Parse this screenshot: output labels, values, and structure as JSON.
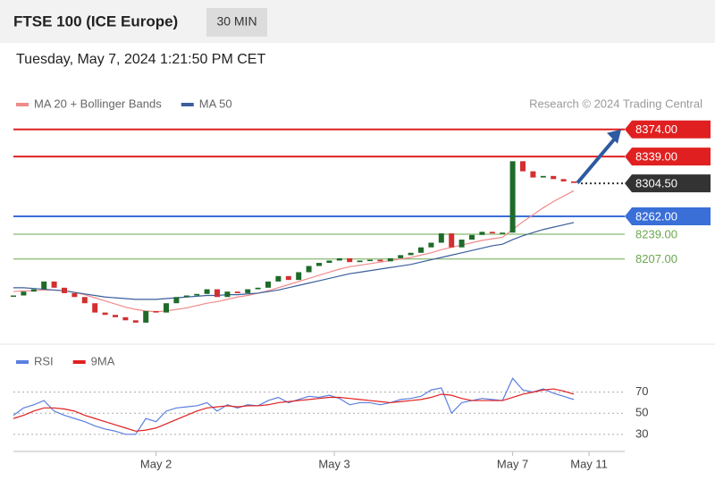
{
  "header": {
    "title": "FTSE 100 (ICE Europe)",
    "interval": "30 MIN",
    "timestamp": "Tuesday, May 7, 2024 1:21:50 PM CET",
    "credit": "Research © 2024 Trading Central"
  },
  "chart_data": [
    {
      "type": "candlestick",
      "values": [
        8160,
        8165,
        8168,
        8178,
        8170,
        8163,
        8158,
        8150,
        8138,
        8135,
        8132,
        8128,
        8125,
        8140,
        8138,
        8150,
        8158,
        8160,
        8162,
        8168,
        8158,
        8165,
        8163,
        8168,
        8170,
        8178,
        8185,
        8180,
        8190,
        8198,
        8202,
        8205,
        8208,
        8203,
        8205,
        8206,
        8204,
        8208,
        8212,
        8215,
        8222,
        8228,
        8240,
        8222,
        8232,
        8238,
        8242,
        8240,
        8241,
        8333,
        8320,
        8312,
        8314,
        8310,
        8307,
        8305
      ],
      "up_color": "#1e6b2a",
      "down_color": "#d32f2f",
      "series": [
        {
          "name": "MA 20 + Bollinger Bands",
          "color": "#f08a8a",
          "values": [
            8165,
            8166,
            8166,
            8167,
            8167,
            8166,
            8164,
            8161,
            8157,
            8153,
            8149,
            8145,
            8142,
            8140,
            8139,
            8140,
            8142,
            8144,
            8147,
            8150,
            8152,
            8155,
            8158,
            8160,
            8163,
            8166,
            8170,
            8174,
            8178,
            8182,
            8186,
            8190,
            8194,
            8197,
            8199,
            8201,
            8203,
            8205,
            8207,
            8209,
            8212,
            8215,
            8219,
            8222,
            8225,
            8228,
            8231,
            8233,
            8235,
            8245,
            8255,
            8264,
            8273,
            8281,
            8288,
            8295
          ]
        },
        {
          "name": "MA 50",
          "color": "#3b5e9c",
          "values": [
            8170,
            8170,
            8169,
            8168,
            8167,
            8166,
            8164,
            8162,
            8160,
            8158,
            8157,
            8156,
            8155,
            8155,
            8155,
            8156,
            8157,
            8158,
            8159,
            8160,
            8160,
            8161,
            8161,
            8162,
            8163,
            8165,
            8167,
            8170,
            8173,
            8176,
            8179,
            8182,
            8185,
            8188,
            8190,
            8192,
            8194,
            8196,
            8198,
            8200,
            8203,
            8206,
            8209,
            8212,
            8215,
            8218,
            8221,
            8224,
            8226,
            8232,
            8237,
            8241,
            8245,
            8248,
            8251,
            8254
          ]
        }
      ],
      "levels": [
        {
          "value": 8374,
          "label": "8374.00",
          "color": "#e02020"
        },
        {
          "value": 8339,
          "label": "8339.00",
          "color": "#e02020"
        },
        {
          "value": 8304.5,
          "label": "8304.50",
          "color": "#333333"
        },
        {
          "value": 8262,
          "label": "8262.00",
          "color": "#3a6fd8"
        },
        {
          "value": 8239,
          "label": "8239.00",
          "color": "#6aa84f"
        },
        {
          "value": 8207,
          "label": "8207.00",
          "color": "#6aa84f"
        }
      ],
      "xlim": [
        0,
        60
      ],
      "ylim": [
        8103,
        8391
      ]
    },
    {
      "type": "line",
      "series": [
        {
          "name": "RSI",
          "color": "#5b7fe0",
          "values": [
            48,
            55,
            58,
            62,
            52,
            48,
            45,
            42,
            38,
            35,
            33,
            30,
            30,
            45,
            42,
            52,
            55,
            56,
            57,
            60,
            52,
            58,
            55,
            58,
            57,
            62,
            65,
            60,
            63,
            66,
            65,
            67,
            64,
            58,
            60,
            60,
            58,
            60,
            63,
            64,
            66,
            72,
            74,
            50,
            60,
            62,
            64,
            63,
            62,
            83,
            72,
            70,
            73,
            69,
            66,
            63
          ]
        },
        {
          "name": "9MA",
          "color": "#e02020",
          "values": [
            45,
            48,
            52,
            55,
            55,
            54,
            52,
            48,
            45,
            42,
            39,
            36,
            33,
            34,
            36,
            40,
            44,
            48,
            52,
            55,
            56,
            57,
            56,
            57,
            57,
            58,
            60,
            61,
            62,
            63,
            64,
            65,
            65,
            64,
            63,
            62,
            61,
            60,
            61,
            62,
            63,
            65,
            68,
            67,
            64,
            62,
            62,
            62,
            62,
            65,
            68,
            70,
            72,
            73,
            71,
            68
          ]
        }
      ],
      "xlim": [
        0,
        60
      ],
      "ylim": [
        18,
        90
      ],
      "yticks": [
        30,
        50,
        70
      ],
      "xticks": [
        {
          "value": 14,
          "label": "May 2"
        },
        {
          "value": 31.5,
          "label": "May 3"
        },
        {
          "value": 49,
          "label": "May 7"
        },
        {
          "value": 56.5,
          "label": "May 11"
        }
      ]
    }
  ]
}
